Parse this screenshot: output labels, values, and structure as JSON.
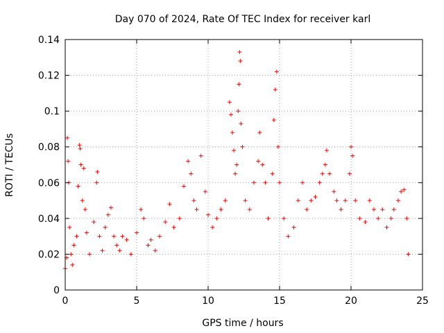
{
  "chart_data": {
    "type": "scatter",
    "title": "Day 070 of 2024, Rate Of TEC Index for receiver karl",
    "xlabel": "GPS time / hours",
    "ylabel": "ROTI / TECUs",
    "xlim": [
      0,
      25
    ],
    "ylim": [
      0,
      0.14
    ],
    "x_ticks": [
      0,
      5,
      10,
      15,
      20,
      25
    ],
    "x_tick_labels": [
      "0",
      "5",
      "10",
      "15",
      "20",
      "25"
    ],
    "y_ticks": [
      0,
      0.02,
      0.04,
      0.06,
      0.08,
      0.1,
      0.12,
      0.14
    ],
    "y_tick_labels": [
      "0",
      "0.02",
      "0.04",
      "0.06",
      "0.08",
      "0.1",
      "0.12",
      "0.14"
    ],
    "grid": true,
    "marker": "+",
    "marker_color": "#ff0000",
    "series": [
      {
        "name": "ROTI",
        "points": [
          [
            0.0,
            0.012
          ],
          [
            0.1,
            0.018
          ],
          [
            0.15,
            0.085
          ],
          [
            0.2,
            0.072
          ],
          [
            0.25,
            0.06
          ],
          [
            0.3,
            0.035
          ],
          [
            0.4,
            0.02
          ],
          [
            0.5,
            0.014
          ],
          [
            0.6,
            0.025
          ],
          [
            0.8,
            0.03
          ],
          [
            0.9,
            0.058
          ],
          [
            1.0,
            0.081
          ],
          [
            1.05,
            0.079
          ],
          [
            1.1,
            0.07
          ],
          [
            1.2,
            0.05
          ],
          [
            1.3,
            0.068
          ],
          [
            1.4,
            0.045
          ],
          [
            1.5,
            0.032
          ],
          [
            1.7,
            0.02
          ],
          [
            2.0,
            0.038
          ],
          [
            2.2,
            0.06
          ],
          [
            2.25,
            0.066
          ],
          [
            2.4,
            0.03
          ],
          [
            2.6,
            0.022
          ],
          [
            2.8,
            0.035
          ],
          [
            3.0,
            0.042
          ],
          [
            3.2,
            0.046
          ],
          [
            3.4,
            0.03
          ],
          [
            3.6,
            0.025
          ],
          [
            3.8,
            0.022
          ],
          [
            4.0,
            0.03
          ],
          [
            4.3,
            0.028
          ],
          [
            4.6,
            0.02
          ],
          [
            5.0,
            0.032
          ],
          [
            5.3,
            0.045
          ],
          [
            5.5,
            0.04
          ],
          [
            5.8,
            0.025
          ],
          [
            6.0,
            0.028
          ],
          [
            6.3,
            0.022
          ],
          [
            6.6,
            0.03
          ],
          [
            7.0,
            0.038
          ],
          [
            7.3,
            0.048
          ],
          [
            7.6,
            0.035
          ],
          [
            8.0,
            0.04
          ],
          [
            8.3,
            0.058
          ],
          [
            8.6,
            0.072
          ],
          [
            8.8,
            0.065
          ],
          [
            9.0,
            0.05
          ],
          [
            9.2,
            0.045
          ],
          [
            9.5,
            0.075
          ],
          [
            9.8,
            0.055
          ],
          [
            10.0,
            0.042
          ],
          [
            10.3,
            0.035
          ],
          [
            10.6,
            0.04
          ],
          [
            10.9,
            0.045
          ],
          [
            11.2,
            0.05
          ],
          [
            11.5,
            0.105
          ],
          [
            11.6,
            0.098
          ],
          [
            11.7,
            0.088
          ],
          [
            11.8,
            0.078
          ],
          [
            11.9,
            0.065
          ],
          [
            12.0,
            0.07
          ],
          [
            12.1,
            0.1
          ],
          [
            12.15,
            0.115
          ],
          [
            12.2,
            0.133
          ],
          [
            12.25,
            0.128
          ],
          [
            12.3,
            0.093
          ],
          [
            12.4,
            0.08
          ],
          [
            12.6,
            0.05
          ],
          [
            12.9,
            0.045
          ],
          [
            13.2,
            0.06
          ],
          [
            13.5,
            0.072
          ],
          [
            13.6,
            0.088
          ],
          [
            13.8,
            0.07
          ],
          [
            14.0,
            0.06
          ],
          [
            14.2,
            0.04
          ],
          [
            14.5,
            0.065
          ],
          [
            14.6,
            0.095
          ],
          [
            14.7,
            0.112
          ],
          [
            14.8,
            0.122
          ],
          [
            14.9,
            0.08
          ],
          [
            15.0,
            0.06
          ],
          [
            15.3,
            0.04
          ],
          [
            15.6,
            0.03
          ],
          [
            16.0,
            0.035
          ],
          [
            16.3,
            0.05
          ],
          [
            16.6,
            0.06
          ],
          [
            16.9,
            0.045
          ],
          [
            17.2,
            0.05
          ],
          [
            17.5,
            0.052
          ],
          [
            17.8,
            0.06
          ],
          [
            18.0,
            0.065
          ],
          [
            18.2,
            0.07
          ],
          [
            18.3,
            0.078
          ],
          [
            18.5,
            0.065
          ],
          [
            18.8,
            0.055
          ],
          [
            19.0,
            0.05
          ],
          [
            19.3,
            0.045
          ],
          [
            19.6,
            0.05
          ],
          [
            19.9,
            0.065
          ],
          [
            20.0,
            0.08
          ],
          [
            20.1,
            0.075
          ],
          [
            20.3,
            0.05
          ],
          [
            20.6,
            0.04
          ],
          [
            21.0,
            0.038
          ],
          [
            21.3,
            0.05
          ],
          [
            21.6,
            0.045
          ],
          [
            21.9,
            0.04
          ],
          [
            22.2,
            0.045
          ],
          [
            22.5,
            0.035
          ],
          [
            22.8,
            0.04
          ],
          [
            23.0,
            0.045
          ],
          [
            23.3,
            0.05
          ],
          [
            23.5,
            0.055
          ],
          [
            23.7,
            0.056
          ],
          [
            23.9,
            0.04
          ],
          [
            24.0,
            0.02
          ]
        ]
      }
    ]
  }
}
